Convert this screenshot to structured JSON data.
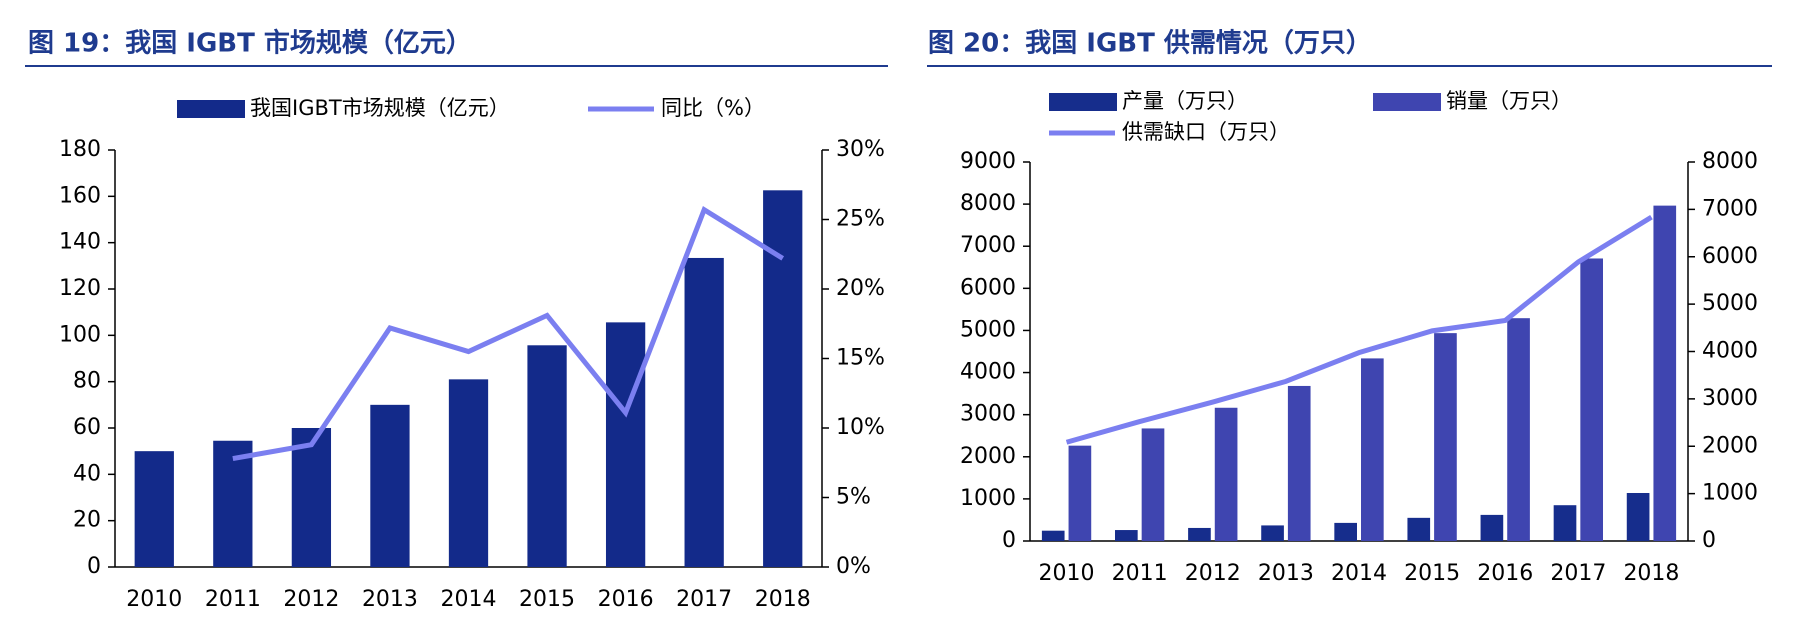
{
  "chart_data": [
    {
      "type": "bar",
      "title": "图 19：我国 IGBT 市场规模（亿元）",
      "categories": [
        "2010",
        "2011",
        "2012",
        "2013",
        "2014",
        "2015",
        "2016",
        "2017",
        "2018"
      ],
      "series": [
        {
          "name": "我国IGBT市场规模（亿元）",
          "type": "bar",
          "color": "#132a8a",
          "values": [
            50,
            54.5,
            60,
            70,
            81,
            95.7,
            105.6,
            133.4,
            162.6
          ]
        },
        {
          "name": "同比（%）",
          "type": "line",
          "axis": "y2",
          "color": "#7b7ff0",
          "values": [
            null,
            7.8,
            8.8,
            17.2,
            15.5,
            18.1,
            11.1,
            25.7,
            22.2
          ]
        }
      ],
      "ylim": [
        0,
        180
      ],
      "yticks": [
        0,
        20,
        40,
        60,
        80,
        100,
        120,
        140,
        160,
        180
      ],
      "y2lim": [
        0,
        30
      ],
      "y2ticks": [
        {
          "value": 0,
          "label": "0%"
        },
        {
          "value": 5,
          "label": "5%"
        },
        {
          "value": 10,
          "label": "10%"
        },
        {
          "value": 15,
          "label": "15%"
        },
        {
          "value": 20,
          "label": "20%"
        },
        {
          "value": 25,
          "label": "25%"
        },
        {
          "value": 30,
          "label": "30%"
        }
      ],
      "grid": false
    },
    {
      "type": "bar",
      "title": "图 20：我国 IGBT 供需情况（万只）",
      "categories": [
        "2010",
        "2011",
        "2012",
        "2013",
        "2014",
        "2015",
        "2016",
        "2017",
        "2018"
      ],
      "series": [
        {
          "name": "产量（万只）",
          "type": "bar",
          "color": "#162d8c",
          "values": [
            245,
            260,
            310,
            370,
            430,
            550,
            620,
            850,
            1140
          ]
        },
        {
          "name": "销量（万只）",
          "type": "bar",
          "color": "#3f45b0",
          "values": [
            2264,
            2673,
            3164,
            3682,
            4336,
            4936,
            5291,
            6709,
            7964
          ]
        },
        {
          "name": "供需缺口（万只）",
          "type": "line",
          "axis": "y2",
          "color": "#7b7ff0",
          "values": [
            2085,
            2521,
            2933,
            3370,
            3976,
            4436,
            4655,
            5891,
            6836
          ]
        }
      ],
      "ylim": [
        0,
        9000
      ],
      "yticks": [
        0,
        1000,
        2000,
        3000,
        4000,
        5000,
        6000,
        7000,
        8000,
        9000
      ],
      "y2lim": [
        0,
        8000
      ],
      "y2ticks": [
        0,
        1000,
        2000,
        3000,
        4000,
        5000,
        6000,
        7000,
        8000
      ],
      "grid": false
    }
  ]
}
